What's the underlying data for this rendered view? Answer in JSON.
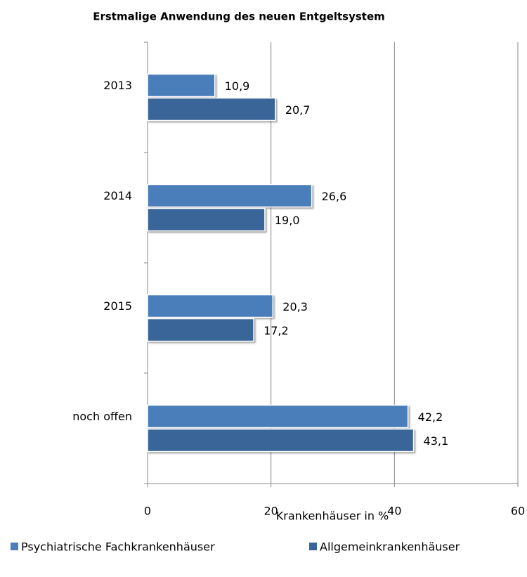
{
  "chart_data": {
    "type": "bar",
    "orientation": "horizontal",
    "title": "Erstmalige Anwendung  des neuen Entgeltsystem",
    "x_label": "Krankenhäuser in %",
    "categories": [
      "2013",
      "2014",
      "2015",
      "noch offen"
    ],
    "series": [
      {
        "name": "Psychiatrische Fachkrankenhäuser",
        "color": "#4a7ebb",
        "values": [
          10.9,
          26.6,
          20.3,
          42.2
        ],
        "value_labels": [
          "10,9",
          "26,6",
          "20,3",
          "42,2"
        ]
      },
      {
        "name": "Allgemeinkrankenhäuser",
        "color": "#3a6598",
        "values": [
          20.7,
          19.0,
          17.2,
          43.1
        ],
        "value_labels": [
          "20,7",
          "19,0",
          "17,2",
          "43,1"
        ]
      }
    ],
    "xlim": [
      0,
      60
    ],
    "xticks": [
      0,
      20,
      40,
      60
    ],
    "grid": true,
    "legend": "bottom"
  }
}
